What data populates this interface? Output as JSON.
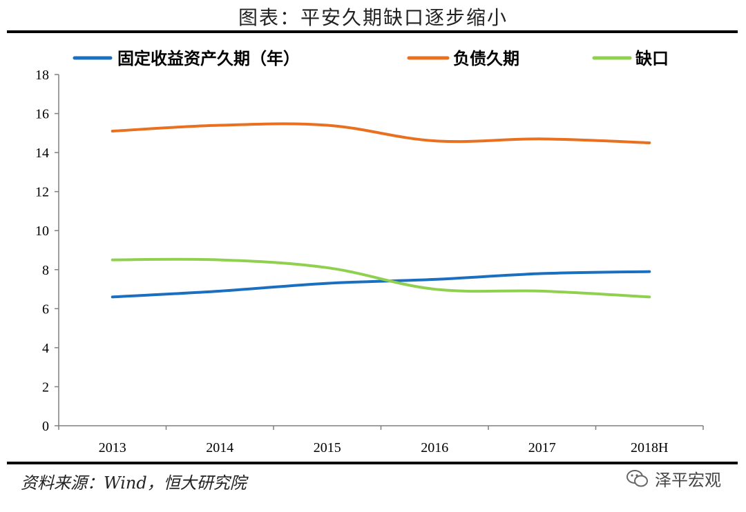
{
  "title": "图表：平安久期缺口逐步缩小",
  "source": "资料来源：Wind，恒大研究院",
  "watermark": {
    "text": "泽平宏观",
    "icon": "wechat-icon"
  },
  "chart_data": {
    "type": "line",
    "categories": [
      "2013",
      "2014",
      "2015",
      "2016",
      "2017",
      "2018H"
    ],
    "ylim": [
      0,
      18
    ],
    "yticks": [
      "0",
      "2",
      "4",
      "6",
      "8",
      "10",
      "12",
      "14",
      "16",
      "18"
    ],
    "grid": false,
    "legend_position": "top",
    "series": [
      {
        "name": "固定收益资产久期（年）",
        "color": "#1a6fc0",
        "values": [
          6.6,
          6.9,
          7.3,
          7.5,
          7.8,
          7.9
        ]
      },
      {
        "name": "负债久期",
        "color": "#e8701f",
        "values": [
          15.1,
          15.4,
          15.4,
          14.6,
          14.7,
          14.5
        ]
      },
      {
        "name": "缺口",
        "color": "#8fd14f",
        "values": [
          8.5,
          8.5,
          8.1,
          7.0,
          6.9,
          6.6
        ]
      }
    ]
  }
}
